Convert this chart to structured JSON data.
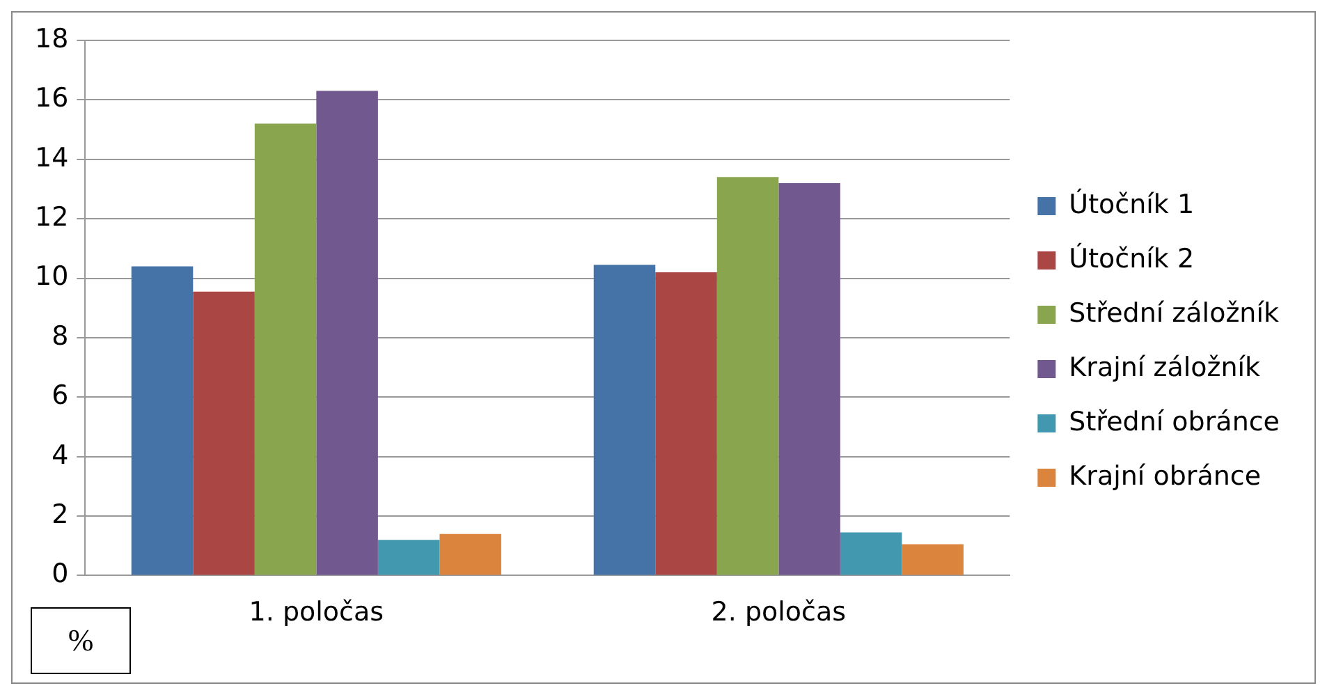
{
  "chart_data": {
    "type": "bar",
    "ylabel": "%",
    "categories": [
      "1. poločas",
      "2. poločas"
    ],
    "series": [
      {
        "name": "Útočník 1",
        "color": "#4572a7",
        "values": [
          10.4,
          10.45
        ]
      },
      {
        "name": "Útočník 2",
        "color": "#aa4643",
        "values": [
          9.55,
          10.2
        ]
      },
      {
        "name": "Střední záložník",
        "color": "#89a54e",
        "values": [
          15.2,
          13.4
        ]
      },
      {
        "name": "Krajní záložník",
        "color": "#71588f",
        "values": [
          16.3,
          13.2
        ]
      },
      {
        "name": "Střední obránce",
        "color": "#4198af",
        "values": [
          1.2,
          1.45
        ]
      },
      {
        "name": "Krajní obránce",
        "color": "#db843d",
        "values": [
          1.4,
          1.05
        ]
      }
    ],
    "ylim": [
      0,
      18
    ],
    "yticks": [
      0,
      2,
      4,
      6,
      8,
      10,
      12,
      14,
      16,
      18
    ],
    "grid": "y",
    "legend": "right"
  }
}
